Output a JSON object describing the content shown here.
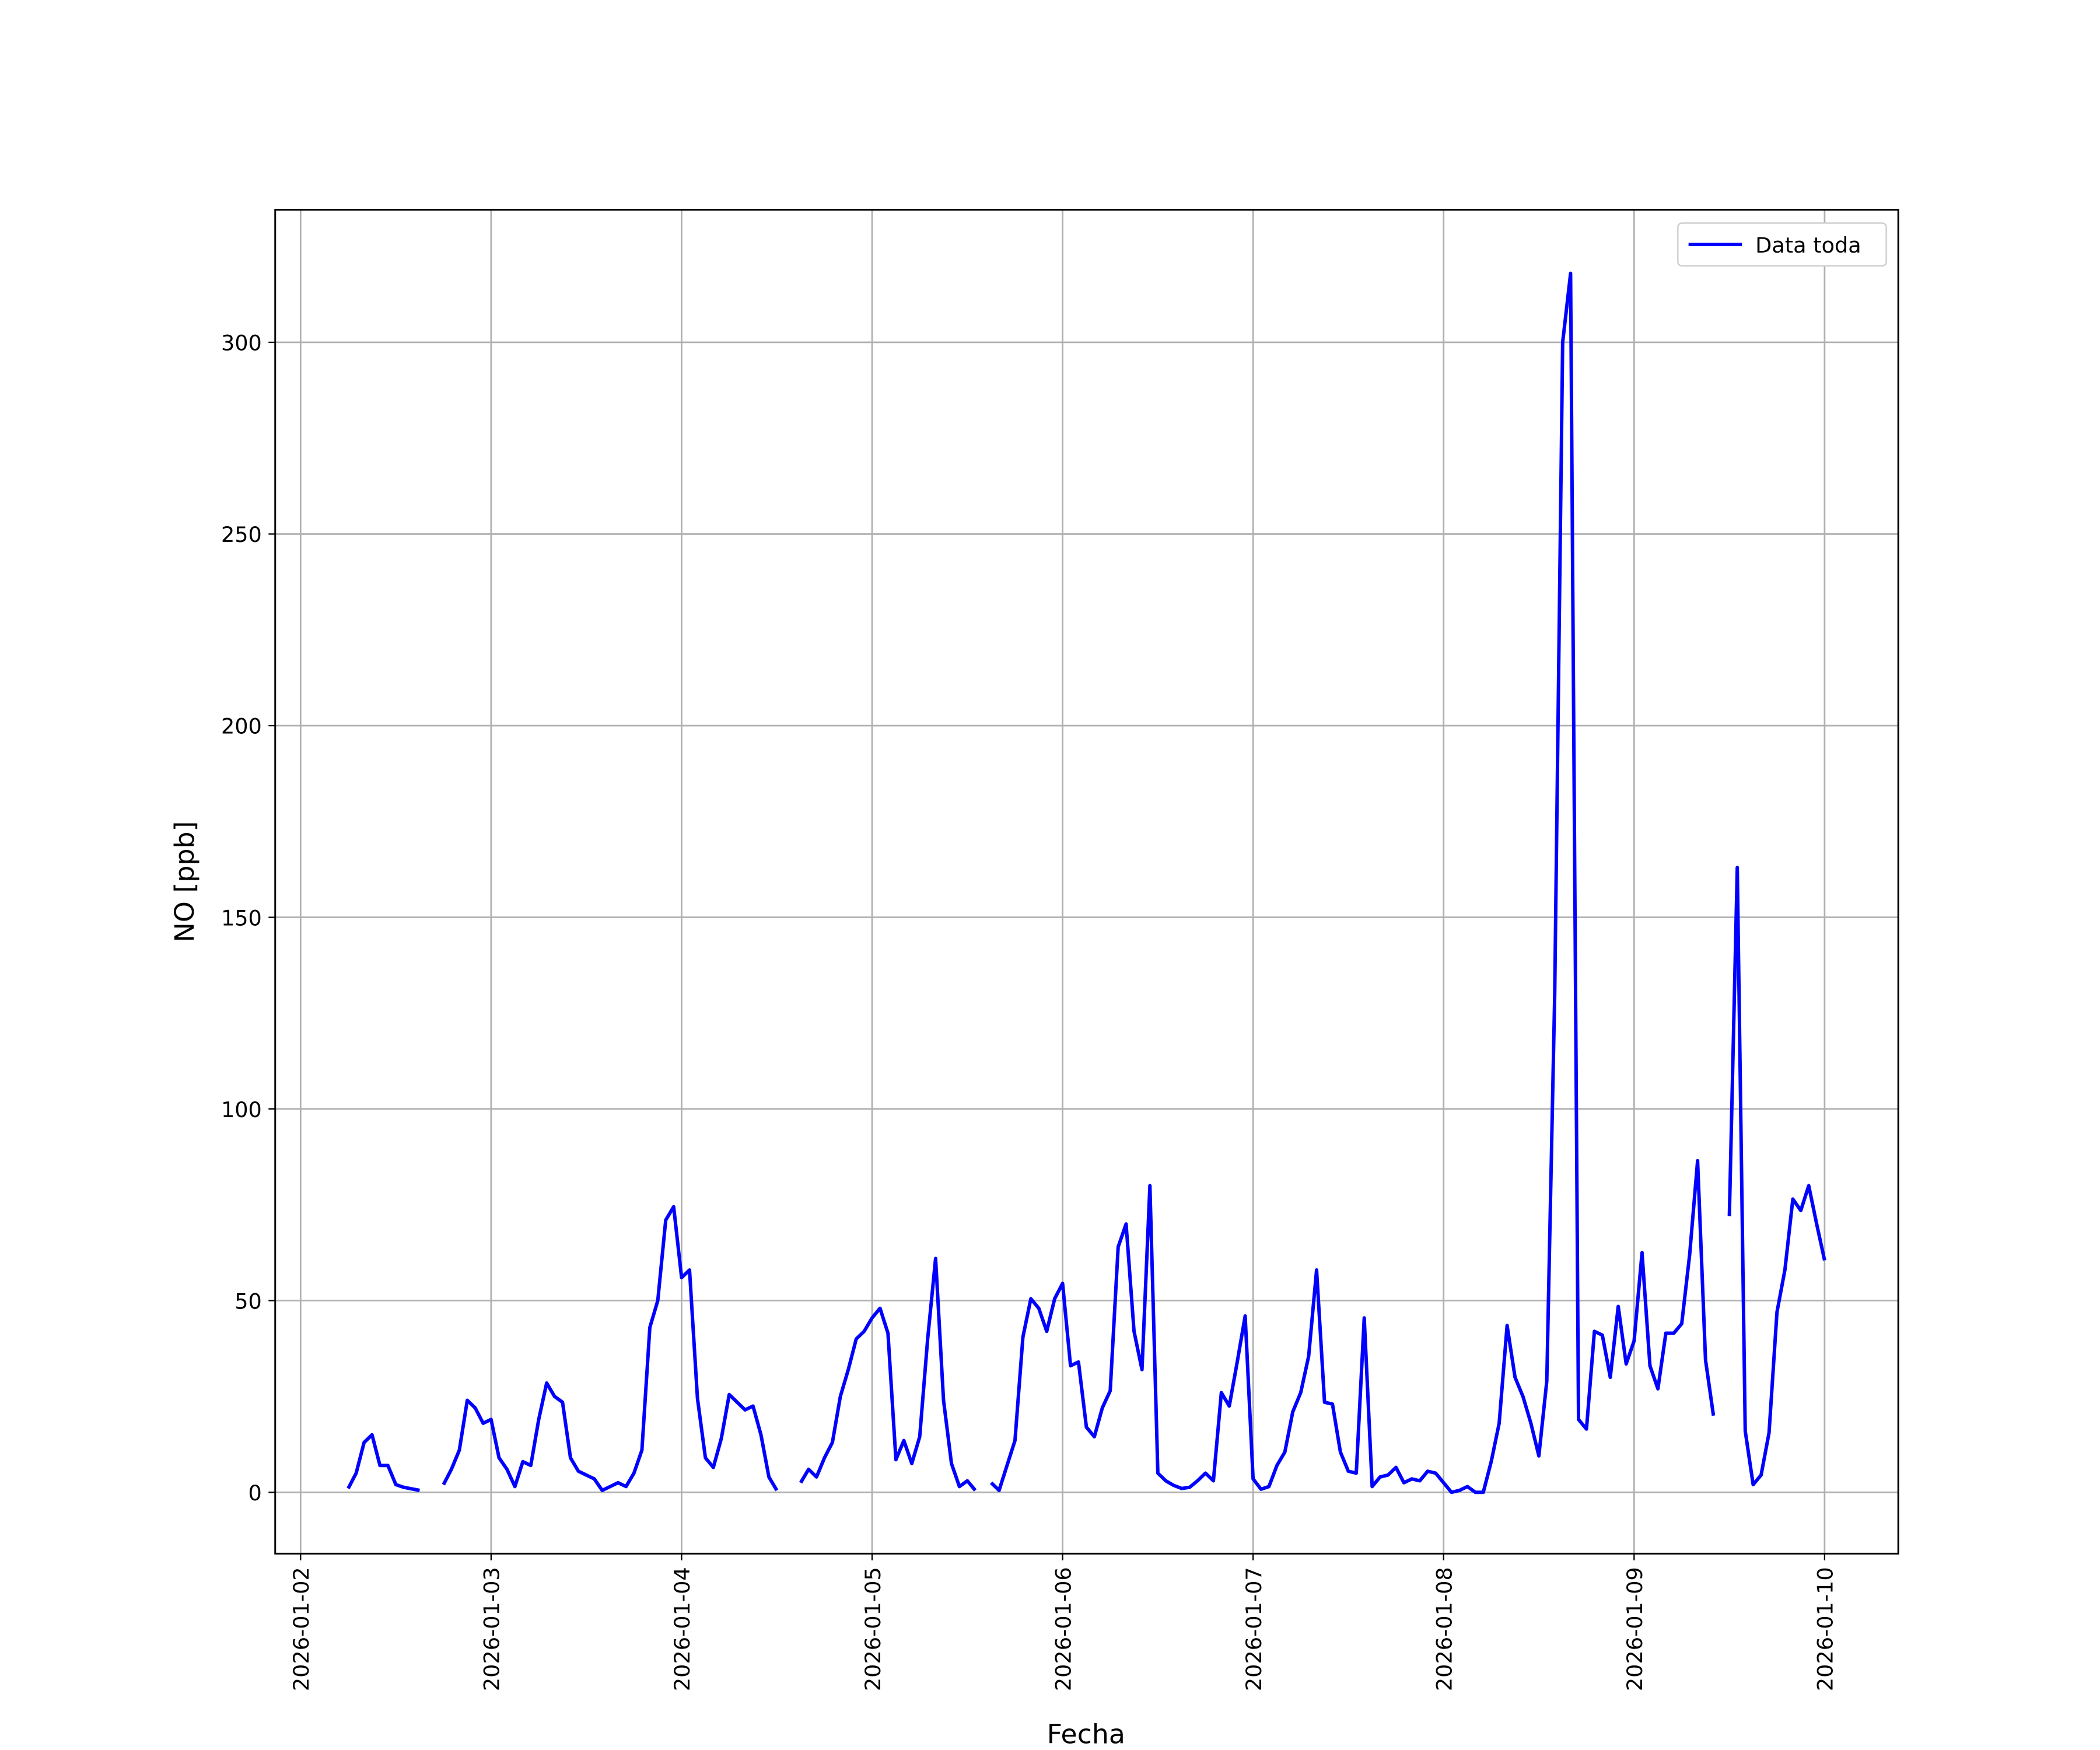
{
  "chart_data": {
    "type": "line",
    "xlabel": "Fecha",
    "ylabel": "NO [ppb]",
    "x": [
      "2026-01-02 06:00",
      "2026-01-02 07:00",
      "2026-01-02 08:00",
      "2026-01-02 09:00",
      "2026-01-02 10:00",
      "2026-01-02 11:00",
      "2026-01-02 12:00",
      "2026-01-02 13:00",
      "2026-01-02 14:00",
      "2026-01-02 15:00",
      "2026-01-02 16:00",
      "2026-01-02 17:00",
      "2026-01-02 18:00",
      "2026-01-02 19:00",
      "2026-01-02 20:00",
      "2026-01-02 21:00",
      "2026-01-02 22:00",
      "2026-01-02 23:00",
      "2026-01-03 00:00",
      "2026-01-03 01:00",
      "2026-01-03 02:00",
      "2026-01-03 03:00",
      "2026-01-03 04:00",
      "2026-01-03 05:00",
      "2026-01-03 06:00",
      "2026-01-03 07:00",
      "2026-01-03 08:00",
      "2026-01-03 09:00",
      "2026-01-03 10:00",
      "2026-01-03 11:00",
      "2026-01-03 12:00",
      "2026-01-03 13:00",
      "2026-01-03 14:00",
      "2026-01-03 15:00",
      "2026-01-03 16:00",
      "2026-01-03 17:00",
      "2026-01-03 18:00",
      "2026-01-03 19:00",
      "2026-01-03 20:00",
      "2026-01-03 21:00",
      "2026-01-03 22:00",
      "2026-01-03 23:00",
      "2026-01-04 00:00",
      "2026-01-04 01:00",
      "2026-01-04 02:00",
      "2026-01-04 03:00",
      "2026-01-04 04:00",
      "2026-01-04 05:00",
      "2026-01-04 06:00",
      "2026-01-04 07:00",
      "2026-01-04 08:00",
      "2026-01-04 09:00",
      "2026-01-04 10:00",
      "2026-01-04 11:00",
      "2026-01-04 12:00",
      "2026-01-04 13:00",
      "2026-01-04 14:00",
      "2026-01-04 15:00",
      "2026-01-04 16:00",
      "2026-01-04 17:00",
      "2026-01-04 18:00",
      "2026-01-04 19:00",
      "2026-01-04 20:00",
      "2026-01-04 21:00",
      "2026-01-04 22:00",
      "2026-01-04 23:00",
      "2026-01-05 00:00",
      "2026-01-05 01:00",
      "2026-01-05 02:00",
      "2026-01-05 03:00",
      "2026-01-05 04:00",
      "2026-01-05 05:00",
      "2026-01-05 06:00",
      "2026-01-05 07:00",
      "2026-01-05 08:00",
      "2026-01-05 09:00",
      "2026-01-05 10:00",
      "2026-01-05 11:00",
      "2026-01-05 12:00",
      "2026-01-05 13:00",
      "2026-01-05 14:00",
      "2026-01-05 15:00",
      "2026-01-05 16:00",
      "2026-01-05 17:00",
      "2026-01-05 18:00",
      "2026-01-05 19:00",
      "2026-01-05 20:00",
      "2026-01-05 21:00",
      "2026-01-05 22:00",
      "2026-01-05 23:00",
      "2026-01-06 00:00",
      "2026-01-06 01:00",
      "2026-01-06 02:00",
      "2026-01-06 03:00",
      "2026-01-06 04:00",
      "2026-01-06 05:00",
      "2026-01-06 06:00",
      "2026-01-06 07:00",
      "2026-01-06 08:00",
      "2026-01-06 09:00",
      "2026-01-06 10:00",
      "2026-01-06 11:00",
      "2026-01-06 12:00",
      "2026-01-06 13:00",
      "2026-01-06 14:00",
      "2026-01-06 15:00",
      "2026-01-06 16:00",
      "2026-01-06 17:00",
      "2026-01-06 18:00",
      "2026-01-06 19:00",
      "2026-01-06 20:00",
      "2026-01-06 21:00",
      "2026-01-06 22:00",
      "2026-01-06 23:00",
      "2026-01-07 00:00",
      "2026-01-07 01:00",
      "2026-01-07 02:00",
      "2026-01-07 03:00",
      "2026-01-07 04:00",
      "2026-01-07 05:00",
      "2026-01-07 06:00",
      "2026-01-07 07:00",
      "2026-01-07 08:00",
      "2026-01-07 09:00",
      "2026-01-07 10:00",
      "2026-01-07 11:00",
      "2026-01-07 12:00",
      "2026-01-07 13:00",
      "2026-01-07 14:00",
      "2026-01-07 15:00",
      "2026-01-07 16:00",
      "2026-01-07 17:00",
      "2026-01-07 18:00",
      "2026-01-07 19:00",
      "2026-01-07 20:00",
      "2026-01-07 21:00",
      "2026-01-07 22:00",
      "2026-01-07 23:00",
      "2026-01-08 00:00",
      "2026-01-08 01:00",
      "2026-01-08 02:00",
      "2026-01-08 03:00",
      "2026-01-08 04:00",
      "2026-01-08 05:00",
      "2026-01-08 06:00",
      "2026-01-08 07:00",
      "2026-01-08 08:00",
      "2026-01-08 09:00",
      "2026-01-08 10:00",
      "2026-01-08 11:00",
      "2026-01-08 12:00",
      "2026-01-08 13:00",
      "2026-01-08 14:00",
      "2026-01-08 15:00",
      "2026-01-08 16:00",
      "2026-01-08 17:00",
      "2026-01-08 18:00",
      "2026-01-08 19:00",
      "2026-01-08 20:00",
      "2026-01-08 21:00",
      "2026-01-08 22:00",
      "2026-01-08 23:00",
      "2026-01-09 00:00",
      "2026-01-09 01:00",
      "2026-01-09 02:00",
      "2026-01-09 03:00",
      "2026-01-09 04:00",
      "2026-01-09 05:00",
      "2026-01-09 06:00",
      "2026-01-09 07:00",
      "2026-01-09 08:00",
      "2026-01-09 09:00",
      "2026-01-09 10:00",
      "2026-01-09 11:00",
      "2026-01-09 12:00",
      "2026-01-09 13:00",
      "2026-01-09 14:00",
      "2026-01-09 15:00",
      "2026-01-09 16:00",
      "2026-01-09 17:00",
      "2026-01-09 18:00",
      "2026-01-09 19:00",
      "2026-01-09 20:00",
      "2026-01-09 21:00",
      "2026-01-09 22:00",
      "2026-01-09 23:00",
      "2026-01-10 00:00"
    ],
    "series": [
      {
        "name": "Data toda",
        "color": "#0000ff",
        "values": [
          1,
          5,
          13,
          15,
          7,
          7,
          2,
          1.3,
          0.9,
          0.5,
          null,
          null,
          2,
          6,
          11,
          24,
          22,
          18,
          19,
          9,
          6,
          1.5,
          8,
          7,
          19,
          28.5,
          25,
          23.5,
          9,
          5.5,
          4.5,
          3.5,
          0.5,
          1.5,
          2.5,
          1.5,
          5,
          11,
          43,
          50,
          71,
          74.5,
          56,
          58,
          24.5,
          9,
          6.5,
          14,
          25.5,
          23.5,
          21.5,
          22.5,
          15,
          4,
          0.5,
          null,
          null,
          2.5,
          6,
          4,
          9,
          13,
          25,
          32,
          40,
          42,
          45.5,
          48,
          41.5,
          8.5,
          13.5,
          7.5,
          14.5,
          40,
          61,
          24,
          7.5,
          1.5,
          3,
          0.5,
          null,
          2.5,
          0.5,
          7,
          13.5,
          40.5,
          50.5,
          48,
          42,
          50.5,
          54.5,
          33,
          34,
          17,
          14.5,
          22,
          26.5,
          64,
          70,
          42,
          32,
          80,
          5,
          3,
          1.8,
          1,
          1.3,
          3,
          5,
          3,
          26,
          22.5,
          34,
          46,
          3.5,
          0.8,
          1.5,
          7,
          10.5,
          21,
          26,
          35.5,
          58,
          23.5,
          23,
          10.5,
          5.5,
          5,
          45.5,
          1.5,
          4,
          4.5,
          6.5,
          2.5,
          3.5,
          3,
          5.5,
          5,
          2.5,
          0,
          0.5,
          1.5,
          0,
          0,
          8,
          18,
          43.5,
          30,
          25,
          18,
          9.5,
          29,
          130,
          300,
          318,
          19,
          16.5,
          42,
          41,
          30,
          48.5,
          33.5,
          39.5,
          62.5,
          33,
          27,
          41.5,
          41.5,
          44,
          62,
          86.5,
          34.5,
          20,
          null,
          72,
          163,
          16,
          2,
          4.5,
          15.5,
          47,
          58,
          76.5,
          73.5,
          80,
          70,
          60.5
        ]
      }
    ],
    "xlim": [
      "2026-01-01 20:48",
      "2026-01-10 09:17"
    ],
    "xticks": [
      "2026-01-02",
      "2026-01-03",
      "2026-01-04",
      "2026-01-05",
      "2026-01-06",
      "2026-01-07",
      "2026-01-08",
      "2026-01-09",
      "2026-01-10"
    ],
    "ylim": [
      -16,
      334.6
    ],
    "yticks": [
      0,
      50,
      100,
      150,
      200,
      250,
      300
    ],
    "grid": true,
    "legend": "upper right"
  }
}
